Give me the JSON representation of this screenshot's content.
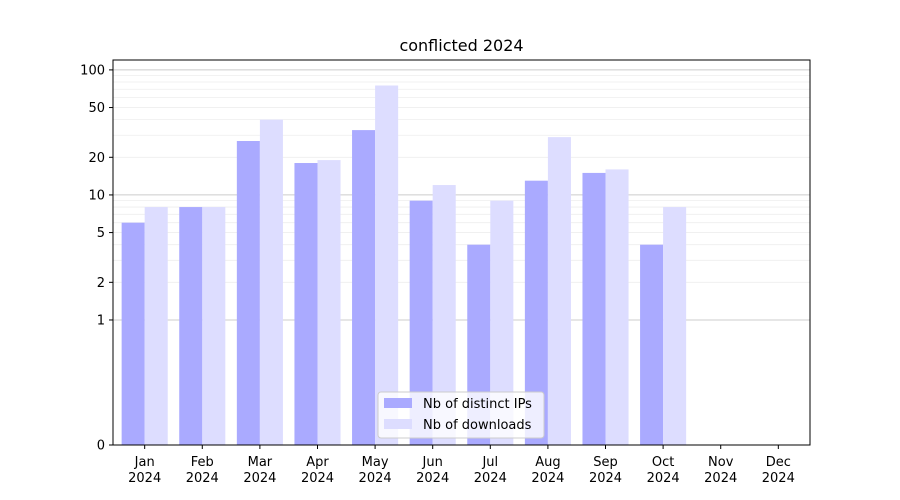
{
  "chart_data": {
    "type": "bar",
    "title": "conflicted 2024",
    "xlabel": "",
    "ylabel": "",
    "yscale": "symlog",
    "ylim": [
      0,
      120
    ],
    "y_ticks": [
      0,
      1,
      2,
      5,
      10,
      20,
      50,
      100
    ],
    "y_tick_labels": [
      "0",
      "1",
      "2",
      "5",
      "10",
      "20",
      "50",
      "100"
    ],
    "categories": [
      "Jan\n2024",
      "Feb\n2024",
      "Mar\n2024",
      "Apr\n2024",
      "May\n2024",
      "Jun\n2024",
      "Jul\n2024",
      "Aug\n2024",
      "Sep\n2024",
      "Oct\n2024",
      "Nov\n2024",
      "Dec\n2024"
    ],
    "category_lines": [
      [
        "Jan",
        "2024"
      ],
      [
        "Feb",
        "2024"
      ],
      [
        "Mar",
        "2024"
      ],
      [
        "Apr",
        "2024"
      ],
      [
        "May",
        "2024"
      ],
      [
        "Jun",
        "2024"
      ],
      [
        "Jul",
        "2024"
      ],
      [
        "Aug",
        "2024"
      ],
      [
        "Sep",
        "2024"
      ],
      [
        "Oct",
        "2024"
      ],
      [
        "Nov",
        "2024"
      ],
      [
        "Dec",
        "2024"
      ]
    ],
    "series": [
      {
        "name": "Nb of distinct IPs",
        "color": "#aaaaff",
        "values": [
          6,
          8,
          27,
          18,
          33,
          9,
          4,
          13,
          15,
          4,
          0,
          0
        ]
      },
      {
        "name": "Nb of downloads",
        "color": "#ddddff",
        "values": [
          8,
          8,
          40,
          19,
          75,
          12,
          9,
          29,
          16,
          8,
          0,
          0
        ]
      }
    ],
    "grid": true,
    "legend_position": "bottom-center"
  }
}
